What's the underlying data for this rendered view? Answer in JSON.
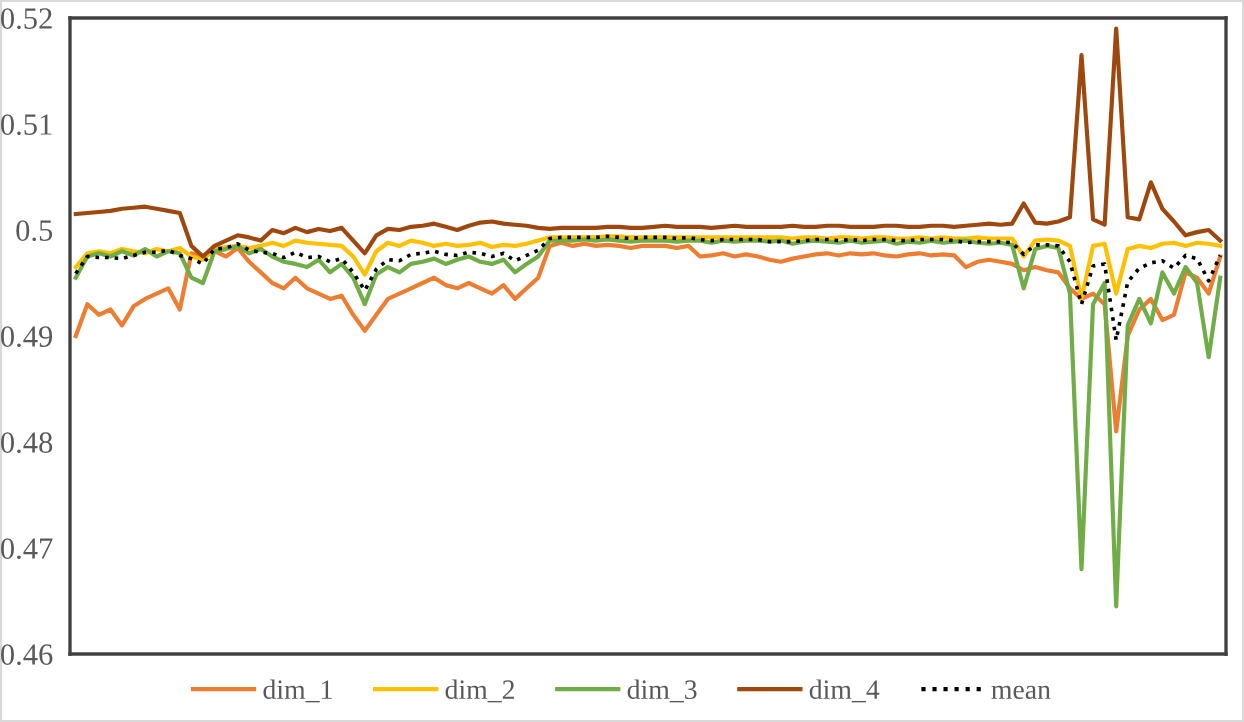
{
  "chart_data": {
    "type": "line",
    "categories": [
      null,
      null,
      null,
      null,
      null,
      null,
      null,
      null,
      null,
      null,
      null,
      null,
      null,
      null,
      null,
      null,
      null,
      null,
      null,
      null,
      null,
      null,
      null,
      null,
      null,
      null,
      null,
      null,
      null,
      null,
      null,
      null,
      null,
      null,
      null,
      null,
      null,
      null,
      null,
      null,
      null,
      null,
      null,
      null,
      null,
      null,
      null,
      null,
      null,
      null,
      null,
      null,
      null,
      null,
      null,
      null,
      null,
      null,
      null,
      null,
      null,
      null,
      null,
      null,
      null,
      null,
      null,
      null,
      null,
      null,
      null,
      null,
      null,
      null,
      null,
      null,
      null,
      null,
      null,
      null,
      null,
      null,
      null,
      null,
      null,
      null,
      null,
      null,
      null,
      null,
      null,
      null,
      null,
      null,
      null,
      null,
      null,
      null,
      null,
      null
    ],
    "series": [
      {
        "name": "dim_1",
        "color": "#ed7d31",
        "line_style": "solid",
        "values": [
          0.49,
          0.493,
          0.492,
          0.4925,
          0.491,
          0.4928,
          0.4935,
          0.494,
          0.4945,
          0.4925,
          0.4978,
          0.4975,
          0.498,
          0.4975,
          0.4983,
          0.497,
          0.496,
          0.495,
          0.4945,
          0.4955,
          0.4945,
          0.494,
          0.4935,
          0.4938,
          0.492,
          0.4905,
          0.492,
          0.4935,
          0.494,
          0.4945,
          0.495,
          0.4955,
          0.4948,
          0.4945,
          0.495,
          0.4945,
          0.494,
          0.4948,
          0.4935,
          0.4945,
          0.4955,
          0.4985,
          0.4988,
          0.4985,
          0.4987,
          0.4985,
          0.4986,
          0.4985,
          0.4983,
          0.4985,
          0.4985,
          0.4985,
          0.4983,
          0.4985,
          0.4975,
          0.4976,
          0.4978,
          0.4975,
          0.4977,
          0.4975,
          0.4972,
          0.497,
          0.4973,
          0.4975,
          0.4977,
          0.4978,
          0.4976,
          0.4978,
          0.4977,
          0.4978,
          0.4976,
          0.4975,
          0.4977,
          0.4978,
          0.4976,
          0.4977,
          0.4976,
          0.4965,
          0.497,
          0.4972,
          0.497,
          0.4968,
          0.4962,
          0.4965,
          0.4962,
          0.496,
          0.4945,
          0.4935,
          0.494,
          0.493,
          0.481,
          0.49,
          0.4925,
          0.4935,
          0.4915,
          0.492,
          0.496,
          0.4955,
          0.494,
          0.4975
        ]
      },
      {
        "name": "dim_2",
        "color": "#ffc000",
        "line_style": "solid",
        "values": [
          0.4965,
          0.4978,
          0.498,
          0.4978,
          0.4982,
          0.498,
          0.4978,
          0.4982,
          0.498,
          0.4983,
          0.4975,
          0.4972,
          0.4982,
          0.4984,
          0.4985,
          0.4983,
          0.4985,
          0.4988,
          0.4985,
          0.499,
          0.4988,
          0.4987,
          0.4986,
          0.4985,
          0.4975,
          0.4958,
          0.498,
          0.4988,
          0.4985,
          0.499,
          0.4988,
          0.4985,
          0.4987,
          0.4985,
          0.4986,
          0.4988,
          0.4984,
          0.4986,
          0.4985,
          0.4987,
          0.499,
          0.4993,
          0.4993,
          0.4993,
          0.4993,
          0.4993,
          0.4994,
          0.4994,
          0.4993,
          0.4993,
          0.4993,
          0.4993,
          0.4993,
          0.4993,
          0.4993,
          0.4993,
          0.4993,
          0.4993,
          0.4993,
          0.4993,
          0.4993,
          0.4993,
          0.4992,
          0.4993,
          0.4993,
          0.4992,
          0.4993,
          0.4993,
          0.4992,
          0.4993,
          0.4993,
          0.4992,
          0.4992,
          0.4993,
          0.4992,
          0.4993,
          0.4992,
          0.4992,
          0.4993,
          0.4992,
          0.4992,
          0.4992,
          0.4975,
          0.499,
          0.4991,
          0.499,
          0.4985,
          0.4935,
          0.4985,
          0.4987,
          0.494,
          0.4982,
          0.4985,
          0.4983,
          0.4987,
          0.4988,
          0.4985,
          0.4988,
          0.4987,
          0.4985
        ]
      },
      {
        "name": "dim_3",
        "color": "#70ad47",
        "line_style": "solid",
        "values": [
          0.4955,
          0.4975,
          0.4978,
          0.4975,
          0.498,
          0.4976,
          0.4982,
          0.4975,
          0.498,
          0.4978,
          0.4955,
          0.495,
          0.498,
          0.4982,
          0.4985,
          0.4978,
          0.4982,
          0.4975,
          0.497,
          0.4968,
          0.4965,
          0.4972,
          0.496,
          0.4968,
          0.4955,
          0.493,
          0.4958,
          0.4965,
          0.496,
          0.4968,
          0.497,
          0.4973,
          0.4968,
          0.4972,
          0.4975,
          0.497,
          0.4968,
          0.4972,
          0.496,
          0.4968,
          0.4975,
          0.499,
          0.499,
          0.499,
          0.4991,
          0.499,
          0.4991,
          0.499,
          0.4989,
          0.499,
          0.499,
          0.499,
          0.4989,
          0.499,
          0.499,
          0.4988,
          0.499,
          0.4989,
          0.499,
          0.499,
          0.4989,
          0.499,
          0.4987,
          0.4989,
          0.499,
          0.4989,
          0.4988,
          0.499,
          0.4988,
          0.4989,
          0.499,
          0.4987,
          0.4989,
          0.4988,
          0.499,
          0.4988,
          0.4989,
          0.499,
          0.4988,
          0.4987,
          0.4988,
          0.4986,
          0.4945,
          0.4982,
          0.4985,
          0.4983,
          0.494,
          0.468,
          0.493,
          0.495,
          0.4645,
          0.491,
          0.4935,
          0.4912,
          0.496,
          0.494,
          0.4965,
          0.495,
          0.488,
          0.4955
        ]
      },
      {
        "name": "dim_4",
        "color": "#9e480e",
        "line_style": "solid",
        "values": [
          0.5015,
          0.5016,
          0.5017,
          0.5018,
          0.502,
          0.5021,
          0.5022,
          0.502,
          0.5018,
          0.5016,
          0.4985,
          0.4975,
          0.4985,
          0.499,
          0.4995,
          0.4993,
          0.499,
          0.5,
          0.4997,
          0.5002,
          0.4998,
          0.5001,
          0.4999,
          0.5002,
          0.499,
          0.4978,
          0.4995,
          0.5001,
          0.5,
          0.5003,
          0.5004,
          0.5006,
          0.5003,
          0.5,
          0.5004,
          0.5007,
          0.5008,
          0.5006,
          0.5005,
          0.5004,
          0.5002,
          0.5001,
          0.5002,
          0.5002,
          0.5002,
          0.5002,
          0.5003,
          0.5003,
          0.5002,
          0.5002,
          0.5003,
          0.5004,
          0.5003,
          0.5003,
          0.5003,
          0.5002,
          0.5003,
          0.5004,
          0.5003,
          0.5003,
          0.5003,
          0.5003,
          0.5004,
          0.5003,
          0.5003,
          0.5004,
          0.5004,
          0.5003,
          0.5003,
          0.5003,
          0.5004,
          0.5004,
          0.5003,
          0.5003,
          0.5004,
          0.5004,
          0.5003,
          0.5004,
          0.5005,
          0.5006,
          0.5005,
          0.5006,
          0.5025,
          0.5007,
          0.5006,
          0.5008,
          0.5012,
          0.5165,
          0.501,
          0.5005,
          0.519,
          0.5012,
          0.501,
          0.5045,
          0.502,
          0.5008,
          0.4995,
          0.4998,
          0.5,
          0.499
        ]
      },
      {
        "name": "mean",
        "color": "#000000",
        "line_style": "dotted",
        "values": [
          0.4959,
          0.4975,
          0.4974,
          0.4974,
          0.4973,
          0.4976,
          0.4979,
          0.4979,
          0.4981,
          0.4976,
          0.4973,
          0.4968,
          0.4982,
          0.4983,
          0.4987,
          0.4981,
          0.4979,
          0.4978,
          0.4974,
          0.4979,
          0.4974,
          0.4975,
          0.497,
          0.4973,
          0.496,
          0.4943,
          0.4963,
          0.4972,
          0.4971,
          0.4977,
          0.4978,
          0.498,
          0.4977,
          0.4976,
          0.4979,
          0.4978,
          0.4975,
          0.4978,
          0.4971,
          0.4976,
          0.4981,
          0.4992,
          0.4993,
          0.4993,
          0.4993,
          0.4993,
          0.4994,
          0.4993,
          0.4992,
          0.4993,
          0.4993,
          0.4993,
          0.4992,
          0.4993,
          0.4991,
          0.499,
          0.4991,
          0.4991,
          0.4991,
          0.4991,
          0.4989,
          0.4989,
          0.4989,
          0.499,
          0.4991,
          0.4991,
          0.499,
          0.4991,
          0.499,
          0.4991,
          0.4991,
          0.499,
          0.499,
          0.4991,
          0.4991,
          0.4991,
          0.499,
          0.4988,
          0.4989,
          0.4989,
          0.4989,
          0.4988,
          0.4977,
          0.4986,
          0.4986,
          0.4985,
          0.497,
          0.493,
          0.4966,
          0.4968,
          0.4896,
          0.4951,
          0.4964,
          0.4969,
          0.4971,
          0.4964,
          0.4976,
          0.4973,
          0.4952,
          0.4976
        ]
      }
    ],
    "ylim": [
      0.46,
      0.52
    ],
    "yticks": [
      0.46,
      0.47,
      0.48,
      0.49,
      {
        "value": 0.5,
        "label": "0.5"
      },
      0.51,
      0.52
    ],
    "grid": false,
    "legend": "bottom",
    "marker": "none"
  }
}
